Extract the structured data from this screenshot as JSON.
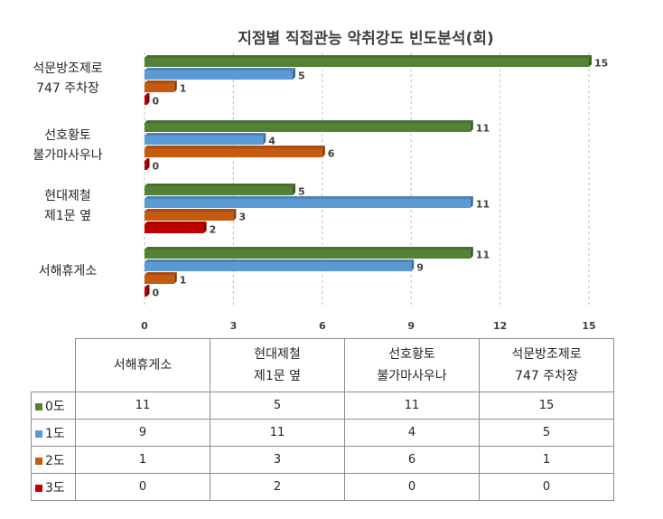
{
  "chart_data": {
    "type": "bar",
    "orientation": "horizontal",
    "title": "지점별 직접관능 악취강도 빈도분석(회)",
    "categories": [
      [
        "석문방조제로",
        "747 주차장"
      ],
      [
        "선호황토",
        "불가마사우나"
      ],
      [
        "현대제철",
        "제1문 옆"
      ],
      [
        "서해휴게소"
      ]
    ],
    "series": [
      {
        "name": "0도",
        "color": "#548235",
        "values": [
          15,
          11,
          5,
          11
        ]
      },
      {
        "name": "1도",
        "color": "#5b9bd5",
        "values": [
          5,
          4,
          11,
          9
        ]
      },
      {
        "name": "2도",
        "color": "#c55a11",
        "values": [
          1,
          6,
          3,
          1
        ]
      },
      {
        "name": "3도",
        "color": "#c00000",
        "values": [
          0,
          0,
          2,
          0
        ]
      }
    ],
    "xlim": [
      0,
      15
    ],
    "xticks": [
      "0",
      "3",
      "6",
      "9",
      "12",
      "15"
    ],
    "grid": "vertical",
    "legend": "data-table",
    "table": {
      "columns": [
        [
          "서해휴게소"
        ],
        [
          "현대제철",
          "제1문 옆"
        ],
        [
          "선호황토",
          "불가마사우나"
        ],
        [
          "석문방조제로",
          "747 주차장"
        ]
      ],
      "rows": [
        {
          "name": "0도",
          "values": [
            11,
            5,
            11,
            15
          ]
        },
        {
          "name": "1도",
          "values": [
            9,
            11,
            4,
            5
          ]
        },
        {
          "name": "2도",
          "values": [
            1,
            3,
            6,
            1
          ]
        },
        {
          "name": "3도",
          "values": [
            0,
            2,
            0,
            0
          ]
        }
      ]
    }
  }
}
